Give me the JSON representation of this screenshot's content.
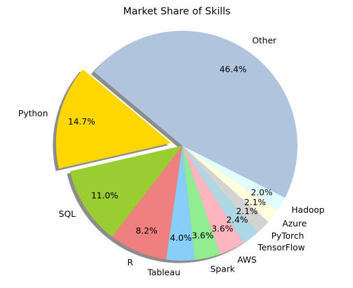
{
  "chart_data": {
    "type": "pie",
    "title": "Market Share of Skills",
    "start_angle_deg": 140,
    "direction": "counterclockwise",
    "shadow": true,
    "slices": [
      {
        "label": "Python",
        "value": 14.7,
        "pct_text": "14.7%",
        "color": "#ffd700",
        "exploded": true
      },
      {
        "label": "SQL",
        "value": 11.0,
        "pct_text": "11.0%",
        "color": "#9acd32",
        "exploded": false
      },
      {
        "label": "R",
        "value": 8.2,
        "pct_text": "8.2%",
        "color": "#f08080",
        "exploded": false
      },
      {
        "label": "Tableau",
        "value": 4.0,
        "pct_text": "4.0%",
        "color": "#87cefa",
        "exploded": false
      },
      {
        "label": "Spark",
        "value": 3.6,
        "pct_text": "3.6%",
        "color": "#90ee90",
        "exploded": false
      },
      {
        "label": "AWS",
        "value": 3.6,
        "pct_text": "3.6%",
        "color": "#ffb6c1",
        "exploded": false
      },
      {
        "label": "TensorFlow",
        "value": 2.4,
        "pct_text": "2.4%",
        "color": "#add8e6",
        "exploded": false
      },
      {
        "label": "PyTorch",
        "value": 2.1,
        "pct_text": "2.1%",
        "color": "#d3d3d3",
        "exploded": false
      },
      {
        "label": "Azure",
        "value": 2.1,
        "pct_text": "2.1%",
        "color": "#ffffe0",
        "exploded": false
      },
      {
        "label": "Hadoop",
        "value": 2.0,
        "pct_text": "2.0%",
        "color": "#e0ffff",
        "exploded": false
      },
      {
        "label": "Other",
        "value": 46.4,
        "pct_text": "46.4%",
        "color": "#b0c4de",
        "exploded": false
      }
    ]
  }
}
